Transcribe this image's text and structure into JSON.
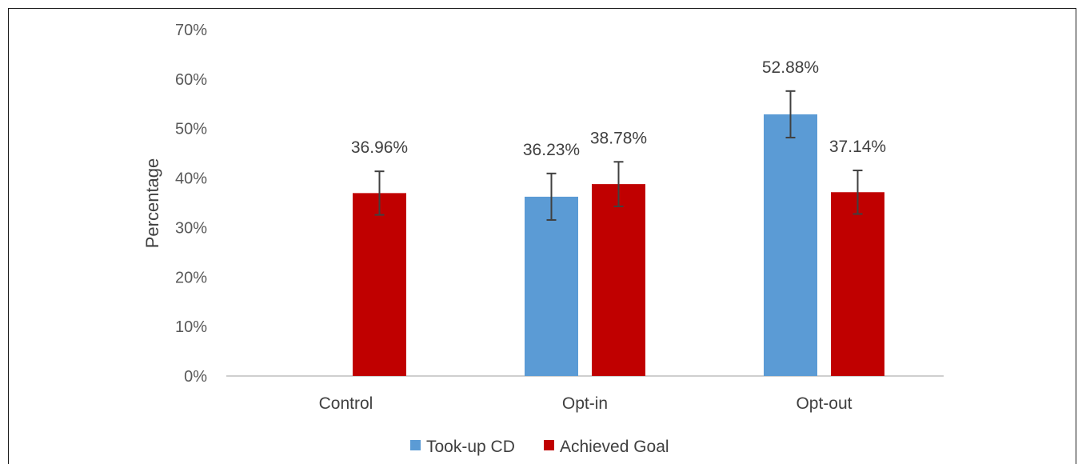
{
  "chart_data": {
    "type": "bar",
    "title": "",
    "xlabel": "",
    "ylabel": "Percentage",
    "ylim": [
      0,
      70
    ],
    "yticks": [
      "0%",
      "10%",
      "20%",
      "30%",
      "40%",
      "50%",
      "60%",
      "70%"
    ],
    "categories": [
      "Control",
      "Opt-in",
      "Opt-out"
    ],
    "series": [
      {
        "name": "Took-up CD",
        "color": "#5b9bd5",
        "values": [
          null,
          36.23,
          52.88
        ],
        "labels": [
          "",
          "36.23%",
          "52.88%"
        ],
        "error": [
          null,
          4.7,
          4.7
        ]
      },
      {
        "name": "Achieved Goal",
        "color": "#c00000",
        "values": [
          36.96,
          38.78,
          37.14
        ],
        "labels": [
          "36.96%",
          "38.78%",
          "37.14%"
        ],
        "error": [
          4.4,
          4.5,
          4.4
        ]
      }
    ],
    "grid": false,
    "legend": "bottom"
  }
}
